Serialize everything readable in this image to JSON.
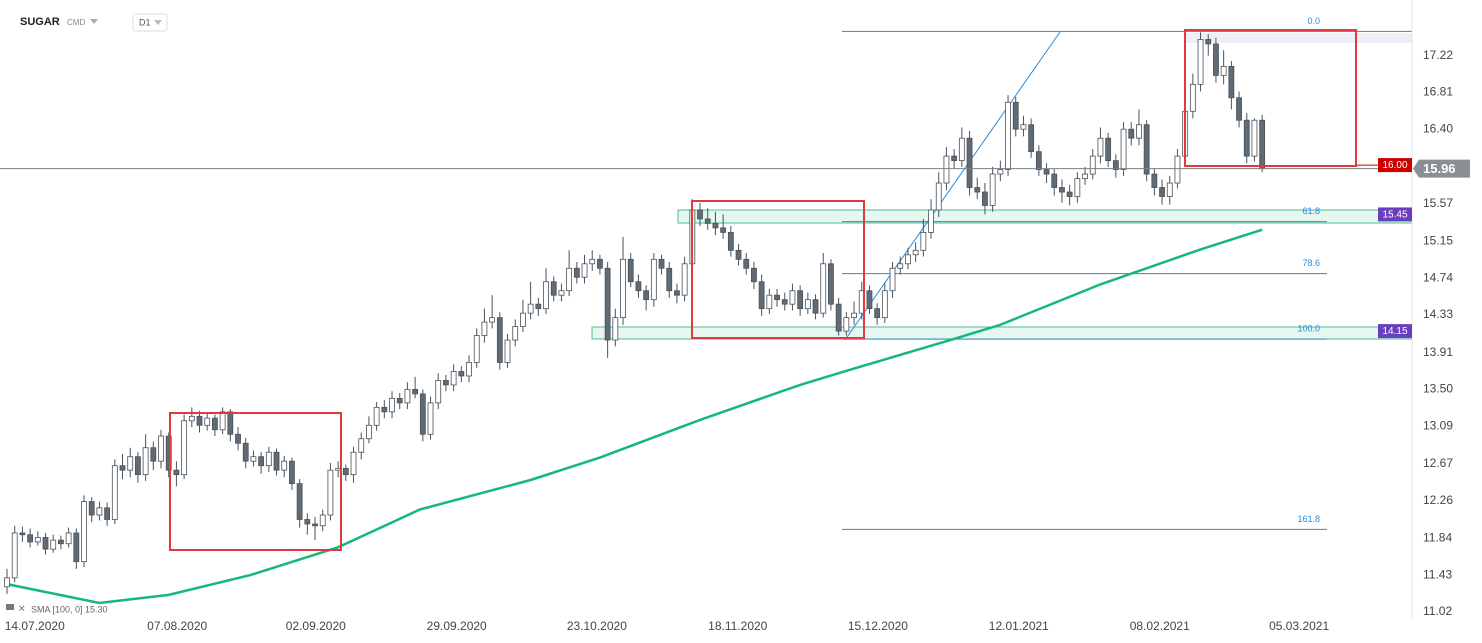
{
  "chart_data": {
    "type": "candlestick",
    "title": "SUGAR",
    "subtitle": "CMD",
    "timeframe": "D1",
    "open": [
      11.3,
      11.4,
      11.9,
      11.88,
      11.8,
      11.85,
      11.72,
      11.82,
      11.78,
      11.9,
      11.58,
      12.25,
      12.1,
      12.18,
      12.05,
      12.65,
      12.6,
      12.75,
      12.55,
      12.85,
      12.7,
      12.98,
      12.6,
      12.55,
      13.15,
      13.2,
      13.1,
      13.18,
      13.05,
      13.25,
      13.0,
      12.9,
      12.7,
      12.75,
      12.65,
      12.8,
      12.6,
      12.7,
      12.45,
      12.05,
      12.0,
      11.98,
      12.1,
      12.6,
      12.62,
      12.55,
      12.8,
      12.95,
      13.1,
      13.3,
      13.25,
      13.4,
      13.35,
      13.5,
      13.45,
      13.0,
      13.35,
      13.6,
      13.55,
      13.7,
      13.65,
      13.8,
      14.1,
      14.25,
      14.3,
      13.8,
      14.05,
      14.2,
      14.35,
      14.45,
      14.4,
      14.7,
      14.55,
      14.6,
      14.85,
      14.75,
      14.9,
      14.95,
      14.85,
      14.05,
      14.3,
      14.95,
      14.7,
      14.6,
      14.5,
      14.95,
      14.85,
      14.6,
      14.55,
      14.9,
      15.5,
      15.4,
      15.35,
      15.3,
      15.25,
      15.05,
      14.95,
      14.85,
      14.7,
      14.4,
      14.55,
      14.5,
      14.45,
      14.6,
      14.4,
      14.5,
      14.35,
      14.9,
      14.45,
      14.15,
      14.3,
      14.35,
      14.6,
      14.4,
      14.3,
      14.6,
      14.85,
      14.9,
      15.0,
      15.05,
      15.25,
      15.5,
      15.8,
      16.1,
      16.05,
      16.3,
      15.75,
      15.7,
      15.55,
      15.9,
      15.95,
      16.7,
      16.4,
      16.45,
      16.15,
      15.95,
      15.9,
      15.75,
      15.7,
      15.65,
      15.85,
      15.9,
      16.1,
      16.3,
      16.05,
      15.95,
      16.4,
      16.3,
      16.45,
      15.9,
      15.75,
      15.65,
      15.8,
      16.1,
      16.6,
      16.9,
      17.4,
      17.35,
      17.0,
      17.1,
      16.75,
      16.5,
      16.1,
      16.5
    ],
    "high": [
      11.5,
      11.98,
      11.97,
      11.95,
      11.92,
      11.9,
      11.88,
      11.87,
      11.96,
      11.95,
      12.32,
      12.3,
      12.25,
      12.24,
      12.72,
      12.78,
      12.85,
      12.8,
      13.0,
      12.92,
      13.05,
      13.02,
      12.7,
      13.22,
      13.3,
      13.26,
      13.24,
      13.22,
      13.3,
      13.28,
      13.08,
      12.96,
      12.82,
      12.8,
      12.86,
      12.84,
      12.76,
      12.74,
      12.5,
      12.12,
      12.08,
      12.16,
      12.68,
      12.7,
      12.66,
      12.86,
      13.02,
      13.2,
      13.36,
      13.38,
      13.48,
      13.46,
      13.58,
      13.64,
      13.5,
      13.42,
      13.68,
      13.66,
      13.78,
      13.76,
      13.88,
      14.18,
      14.4,
      14.55,
      14.36,
      14.12,
      14.28,
      14.5,
      14.7,
      14.52,
      14.85,
      14.76,
      14.68,
      15.05,
      14.92,
      15.0,
      15.05,
      15.0,
      14.92,
      14.4,
      15.2,
      15.02,
      14.78,
      14.66,
      15.02,
      15.0,
      14.92,
      14.68,
      14.98,
      15.62,
      15.58,
      15.52,
      15.48,
      15.45,
      15.32,
      15.12,
      15.02,
      14.92,
      14.78,
      14.62,
      14.62,
      14.58,
      14.68,
      14.66,
      14.58,
      14.56,
      15.02,
      14.95,
      14.52,
      14.36,
      14.48,
      14.7,
      14.66,
      14.46,
      14.68,
      14.92,
      14.98,
      15.08,
      15.14,
      15.4,
      15.62,
      15.92,
      16.2,
      16.18,
      16.42,
      16.38,
      15.86,
      15.8,
      15.98,
      16.05,
      16.78,
      16.76,
      16.55,
      16.52,
      16.22,
      16.02,
      15.96,
      15.84,
      15.78,
      15.92,
      15.98,
      16.18,
      16.42,
      16.36,
      16.12,
      16.48,
      16.48,
      16.62,
      16.5,
      15.96,
      15.84,
      15.88,
      16.18,
      16.68,
      17.02,
      17.48,
      17.46,
      17.42,
      17.28,
      17.16,
      16.82,
      16.58,
      16.52,
      16.56
    ],
    "low": [
      11.22,
      11.35,
      11.8,
      11.74,
      11.76,
      11.66,
      11.68,
      11.72,
      11.74,
      11.5,
      11.52,
      12.02,
      12.04,
      11.98,
      12.0,
      12.5,
      12.52,
      12.46,
      12.48,
      12.6,
      12.62,
      12.52,
      12.42,
      12.5,
      13.08,
      13.02,
      13.04,
      12.98,
      13.0,
      12.92,
      12.82,
      12.62,
      12.64,
      12.56,
      12.58,
      12.54,
      12.52,
      12.38,
      11.96,
      11.88,
      11.82,
      11.92,
      12.04,
      12.52,
      12.48,
      12.46,
      12.72,
      12.9,
      13.04,
      13.18,
      13.18,
      13.28,
      13.28,
      13.4,
      12.92,
      12.94,
      13.28,
      13.48,
      13.48,
      13.58,
      13.58,
      13.74,
      14.02,
      14.18,
      13.72,
      13.74,
      13.98,
      14.14,
      14.28,
      14.32,
      14.34,
      14.48,
      14.48,
      14.54,
      14.68,
      14.68,
      14.82,
      14.78,
      13.85,
      13.98,
      14.22,
      14.64,
      14.52,
      14.38,
      14.42,
      14.78,
      14.52,
      14.46,
      14.48,
      14.82,
      15.32,
      15.28,
      15.22,
      15.18,
      14.98,
      14.88,
      14.78,
      14.62,
      14.32,
      14.34,
      14.42,
      14.38,
      14.38,
      14.32,
      14.34,
      14.28,
      14.3,
      14.38,
      14.1,
      14.1,
      14.22,
      14.28,
      14.34,
      14.22,
      14.24,
      14.52,
      14.78,
      14.84,
      14.92,
      14.98,
      15.18,
      15.42,
      15.72,
      15.96,
      15.98,
      15.66,
      15.62,
      15.45,
      15.48,
      15.82,
      15.88,
      16.32,
      16.32,
      16.08,
      15.88,
      15.8,
      15.66,
      15.58,
      15.55,
      15.58,
      15.78,
      15.84,
      16.02,
      15.98,
      15.86,
      15.88,
      16.22,
      16.22,
      15.82,
      15.66,
      15.56,
      15.56,
      15.74,
      16.02,
      16.52,
      16.82,
      17.22,
      16.92,
      16.9,
      16.62,
      16.42,
      16.02,
      16.04,
      15.92
    ],
    "close": [
      11.4,
      11.9,
      11.88,
      11.8,
      11.85,
      11.72,
      11.82,
      11.78,
      11.9,
      11.58,
      12.25,
      12.1,
      12.18,
      12.05,
      12.65,
      12.6,
      12.75,
      12.55,
      12.85,
      12.7,
      12.98,
      12.6,
      12.55,
      13.15,
      13.2,
      13.1,
      13.18,
      13.05,
      13.25,
      13.0,
      12.9,
      12.7,
      12.75,
      12.65,
      12.8,
      12.6,
      12.7,
      12.45,
      12.05,
      12.0,
      11.98,
      12.1,
      12.6,
      12.62,
      12.55,
      12.8,
      12.95,
      13.1,
      13.3,
      13.25,
      13.4,
      13.35,
      13.5,
      13.45,
      13.0,
      13.35,
      13.6,
      13.55,
      13.7,
      13.65,
      13.8,
      14.1,
      14.25,
      14.3,
      13.8,
      14.05,
      14.2,
      14.35,
      14.45,
      14.4,
      14.7,
      14.55,
      14.6,
      14.85,
      14.75,
      14.9,
      14.95,
      14.85,
      14.05,
      14.3,
      14.95,
      14.7,
      14.6,
      14.5,
      14.95,
      14.85,
      14.6,
      14.55,
      14.9,
      15.5,
      15.4,
      15.35,
      15.3,
      15.25,
      15.05,
      14.95,
      14.85,
      14.7,
      14.4,
      14.55,
      14.5,
      14.45,
      14.6,
      14.4,
      14.5,
      14.35,
      14.9,
      14.45,
      14.15,
      14.3,
      14.35,
      14.6,
      14.4,
      14.3,
      14.6,
      14.85,
      14.9,
      15.0,
      15.05,
      15.25,
      15.5,
      15.8,
      16.1,
      16.05,
      16.3,
      15.75,
      15.7,
      15.55,
      15.9,
      15.95,
      16.7,
      16.4,
      16.45,
      16.15,
      15.95,
      15.9,
      15.75,
      15.7,
      15.65,
      15.85,
      15.9,
      16.1,
      16.3,
      16.05,
      15.95,
      16.4,
      16.3,
      16.45,
      15.9,
      15.75,
      15.65,
      15.8,
      16.1,
      16.6,
      16.9,
      17.4,
      17.35,
      17.0,
      17.1,
      16.75,
      16.5,
      16.1,
      16.5,
      15.96
    ],
    "color_up": "#ffffff",
    "color_down": "#5f6b75",
    "xlim": [
      -0.91,
      182.2
    ],
    "xticks": [
      {
        "value": 3.6,
        "label": "14.07.2020"
      },
      {
        "value": 22.1,
        "label": "07.08.2020"
      },
      {
        "value": 40.1,
        "label": "02.09.2020"
      },
      {
        "value": 58.4,
        "label": "29.09.2020"
      },
      {
        "value": 76.6,
        "label": "23.10.2020"
      },
      {
        "value": 94.9,
        "label": "18.11.2020"
      },
      {
        "value": 113.1,
        "label": "15.12.2020"
      },
      {
        "value": 131.4,
        "label": "12.01.2021"
      },
      {
        "value": 149.7,
        "label": "08.02.2021"
      },
      {
        "value": 167.8,
        "label": "05.03.2021"
      }
    ],
    "ylim": [
      10.93,
      17.84
    ],
    "yticks": [
      17.22,
      16.81,
      {
        "value": 16.4,
        "label": "16.40"
      },
      15.57,
      15.15,
      14.74,
      14.33,
      13.91,
      {
        "value": 13.5,
        "label": "13.50"
      },
      13.09,
      12.67,
      12.26,
      11.84,
      11.43,
      11.02
    ],
    "sma": {
      "label": "SMA [100, 0] 15.30",
      "color": "#14b87a",
      "x": [
        0,
        12,
        21,
        31.6,
        43,
        53.6,
        68,
        77,
        90,
        103,
        109.5,
        122.5,
        129,
        142,
        155,
        163
      ],
      "values": [
        11.33,
        11.12,
        11.21,
        11.43,
        11.74,
        12.16,
        12.49,
        12.74,
        13.16,
        13.55,
        13.72,
        14.05,
        14.22,
        14.67,
        15.06,
        15.28
      ]
    },
    "fib": [
      {
        "label": "0.0",
        "price": 17.49
      },
      {
        "label": "61.8",
        "price": 15.37
      },
      {
        "label": "78.6",
        "price": 14.79
      },
      {
        "label": "100.0",
        "price": 14.06
      },
      {
        "label": "161.8",
        "price": 11.94
      }
    ],
    "price_tags": [
      {
        "value": 16.0,
        "label": "16.00",
        "color": "#cc0000"
      },
      {
        "value": 15.96,
        "label": "15.96",
        "color": "#8a8f94"
      },
      {
        "value": 15.45,
        "label": "15.45",
        "color": "#6a3fbf"
      },
      {
        "value": 14.15,
        "label": "14.15",
        "color": "#6a3fbf"
      }
    ]
  }
}
